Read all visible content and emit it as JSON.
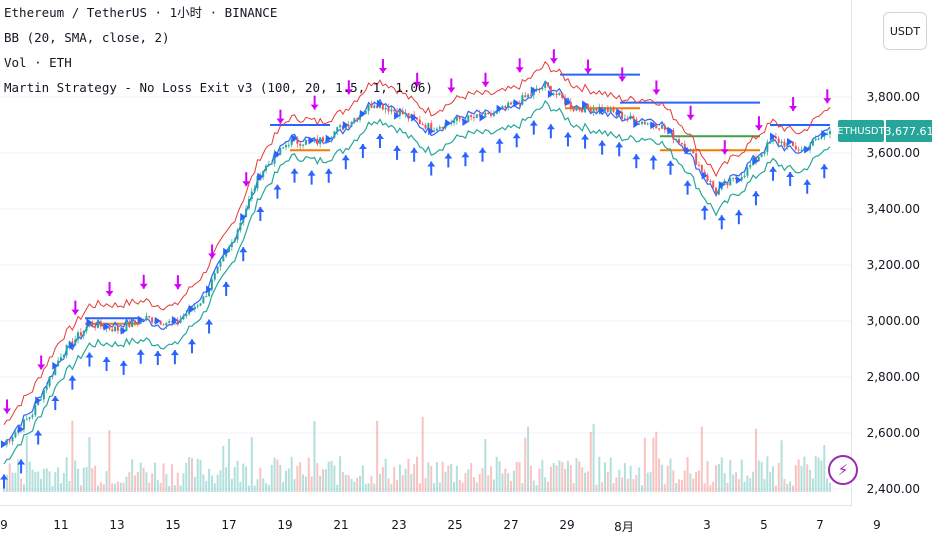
{
  "legend": {
    "symbol_line": "Ethereum / TetherUS · 1小时 · BINANCE",
    "bb_line": "BB (20, SMA, close, 2)",
    "vol_line": "Vol · ETH",
    "strategy_line": "Martin Strategy - No Loss Exit v3 (100, 20, 1.5, 1, 1.06)"
  },
  "axis": {
    "currency": "USDT",
    "y_ticks": [
      "3,800.00",
      "3,600.00",
      "3,400.00",
      "3,200.00",
      "3,000.00",
      "2,800.00",
      "2,600.00",
      "2,400.00"
    ],
    "x_ticks": [
      "9",
      "11",
      "13",
      "15",
      "17",
      "19",
      "21",
      "23",
      "25",
      "27",
      "29",
      "8月",
      "3",
      "5",
      "7",
      "9"
    ]
  },
  "price_tag": {
    "symbol": "ETHUSDT",
    "price": "3,677.61"
  },
  "icons": {
    "flash": "lightning-icon"
  },
  "colors": {
    "upper_band": "#e53935",
    "lower_band": "#26a69a",
    "basis": "#2962ff",
    "buy_arrow": "#2962ff",
    "sell_arrow": "#d500f9",
    "avg_line": "#f57c00",
    "tp_line": "#43a047",
    "up_candle": "#26a69a",
    "down_candle": "#ef5350"
  },
  "chart_data": {
    "type": "line",
    "title": "",
    "series": [
      {
        "name": "close",
        "x": [
          "9",
          "10",
          "11",
          "12",
          "13",
          "14",
          "15",
          "16",
          "17",
          "18",
          "19",
          "20",
          "21",
          "22",
          "23",
          "24",
          "25",
          "26",
          "27",
          "28",
          "29",
          "30",
          "31",
          "8月",
          "2",
          "3",
          "4",
          "5",
          "6",
          "7"
        ],
        "values": [
          2560,
          2670,
          2880,
          2990,
          2970,
          3010,
          2990,
          3080,
          3280,
          3530,
          3640,
          3640,
          3700,
          3780,
          3740,
          3690,
          3720,
          3730,
          3780,
          3840,
          3760,
          3760,
          3720,
          3700,
          3620,
          3460,
          3530,
          3650,
          3610,
          3678
        ]
      }
    ],
    "ylim": [
      2370,
      3980
    ],
    "last_price": 3677.61
  }
}
